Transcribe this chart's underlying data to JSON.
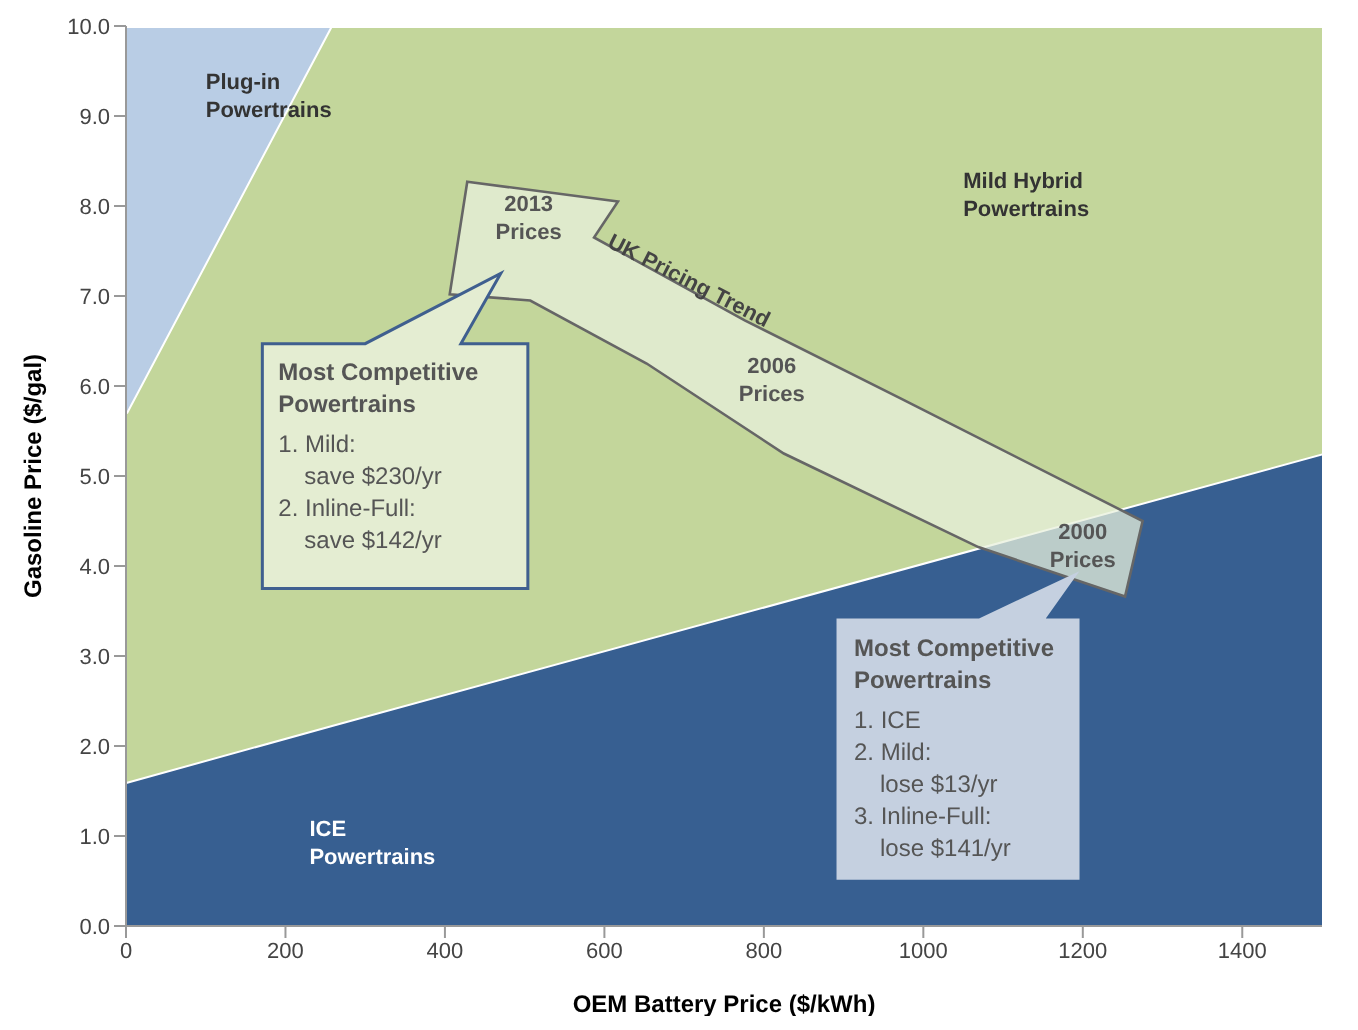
{
  "chart_data": {
    "type": "area",
    "stacked": true,
    "xlabel": "OEM Battery Price ($/kWh)",
    "ylabel": "Gasoline Price ($/gal)",
    "x": [
      0,
      257,
      1500
    ],
    "series": [
      {
        "name": "ICE Powertrains",
        "color": "#375f91",
        "values": [
          1.6,
          2.23,
          5.25
        ]
      },
      {
        "name": "Mild Hybrid Powertrains",
        "color": "#c3d69b",
        "values": [
          4.1,
          7.77,
          4.75
        ]
      },
      {
        "name": "Plug-in Powertrains",
        "color": "#b9cde5",
        "values": [
          4.3,
          0,
          0
        ]
      }
    ],
    "xlim": [
      0,
      1500
    ],
    "xticks": [
      0,
      200,
      400,
      600,
      800,
      1000,
      1200,
      1400
    ],
    "ylim": [
      0,
      10
    ],
    "yticks": [
      {
        "value": 0,
        "label": "0.0"
      },
      {
        "value": 1,
        "label": "1.0"
      },
      {
        "value": 2,
        "label": "2.0"
      },
      {
        "value": 3,
        "label": "3.0"
      },
      {
        "value": 4,
        "label": "4.0"
      },
      {
        "value": 5,
        "label": "5.0"
      },
      {
        "value": 6,
        "label": "6.0"
      },
      {
        "value": 7,
        "label": "7.0"
      },
      {
        "value": 8,
        "label": "8.0"
      },
      {
        "value": 9,
        "label": "9.0"
      },
      {
        "value": 10,
        "label": "10.0"
      }
    ],
    "annotations": [
      "2013 Prices",
      "2006 Prices",
      "2000 Prices",
      "UK Pricing Trend",
      "Most Competitive\nPowertrains\n1. Mild:\nsave $230/yr\n2. Inline-Full:\nsave $142/yr",
      "Most Competitive\nPowertrains\n1. ICE\n2. Mild:\nlose $13/yr\n3. Inline-Full:\nlose $141/yr"
    ]
  }
}
